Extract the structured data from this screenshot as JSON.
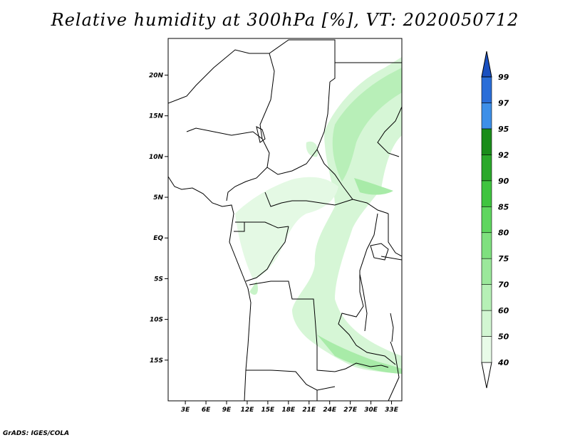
{
  "title": "Relative humidity at 300hPa [%], VT: 2020050712",
  "credit": "GrADS: IGES/COLA",
  "lat_axis": {
    "labels": [
      "20N",
      "15N",
      "10N",
      "5N",
      "EQ",
      "5S",
      "10S",
      "15S"
    ],
    "values": [
      20,
      15,
      10,
      5,
      0,
      -5,
      -10,
      -15
    ],
    "range": [
      -20,
      24.5
    ]
  },
  "lon_axis": {
    "labels": [
      "3E",
      "6E",
      "9E",
      "12E",
      "15E",
      "18E",
      "21E",
      "24E",
      "27E",
      "30E",
      "33E"
    ],
    "values": [
      3,
      6,
      9,
      12,
      15,
      18,
      21,
      24,
      27,
      30,
      33
    ],
    "range": [
      0.5,
      34.5
    ]
  },
  "colorbar": {
    "levels": [
      "40",
      "50",
      "60",
      "70",
      "75",
      "80",
      "85",
      "90",
      "92",
      "95",
      "97",
      "99"
    ],
    "colors": [
      "#ffffff",
      "#e8fbe8",
      "#d2f6d2",
      "#b6f0b6",
      "#9be89b",
      "#7fe07f",
      "#5fd65f",
      "#3fc43f",
      "#2aa82a",
      "#1a8c1a",
      "#3d8fe8",
      "#2a6ed8",
      "#1a50c0"
    ]
  }
}
